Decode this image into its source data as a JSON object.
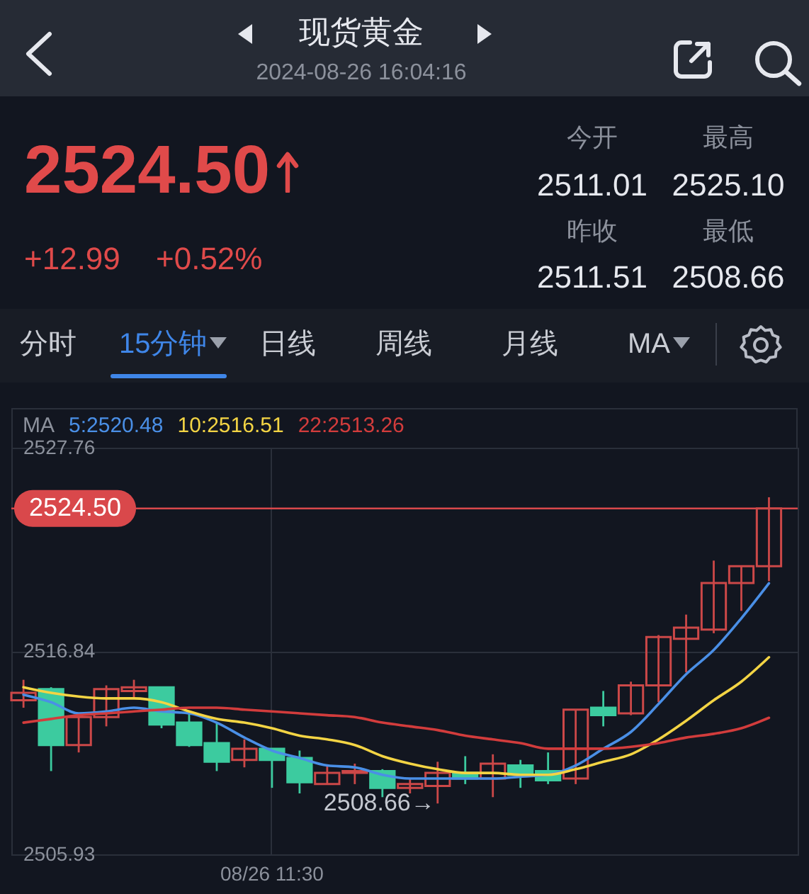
{
  "chart_data": [
    {
      "type": "other",
      "title": "现货黄金",
      "subtitle": "2024-08-26 16:04:16",
      "annotations": [
        "2524.50",
        "+12.99",
        "+0.52%",
        "今开",
        "最高",
        "2511.01",
        "2525.10",
        "昨收",
        "最低",
        "2511.51",
        "2508.66",
        "分时",
        "15分钟",
        "日线",
        "周线",
        "月线",
        "MA"
      ]
    },
    {
      "type": "candlestick",
      "categories": [
        null,
        null,
        null,
        null,
        null,
        null,
        null,
        null,
        null,
        "08/26 11:30",
        null,
        null,
        null,
        null,
        null,
        null,
        null,
        null,
        null,
        null,
        null,
        null,
        null,
        null,
        null,
        null,
        null,
        null
      ],
      "ohlc": [
        [
          2514.2,
          2515.3,
          2513.8,
          2514.6
        ],
        [
          2514.8,
          2514.9,
          2510.4,
          2511.8
        ],
        [
          2511.8,
          2513.4,
          2511.4,
          2513.3
        ],
        [
          2513.3,
          2515.0,
          2512.8,
          2514.8
        ],
        [
          2514.7,
          2515.3,
          2514.3,
          2514.9
        ],
        [
          2514.9,
          2514.9,
          2512.7,
          2512.9
        ],
        [
          2513.0,
          2513.5,
          2511.7,
          2511.8
        ],
        [
          2511.9,
          2513.0,
          2510.4,
          2510.9
        ],
        [
          2511.0,
          2512.1,
          2510.6,
          2511.6
        ],
        [
          2511.6,
          2511.6,
          2509.5,
          2511.0
        ],
        [
          2511.1,
          2511.5,
          2509.2,
          2509.8
        ],
        [
          2509.7,
          2510.7,
          2509.7,
          2510.3
        ],
        [
          2510.3,
          2510.8,
          2509.7,
          2510.4
        ],
        [
          2510.4,
          2510.5,
          2509.0,
          2509.5
        ],
        [
          2509.5,
          2510.0,
          2509.2,
          2509.7
        ],
        [
          2509.6,
          2510.9,
          2508.66,
          2510.3
        ],
        [
          2510.3,
          2511.2,
          2509.7,
          2510.0
        ],
        [
          2510.0,
          2511.3,
          2509.0,
          2510.8
        ],
        [
          2510.7,
          2511.0,
          2509.5,
          2510.2
        ],
        [
          2510.4,
          2511.4,
          2509.7,
          2509.9
        ],
        [
          2510.0,
          2513.7,
          2509.7,
          2513.7
        ],
        [
          2513.8,
          2514.7,
          2512.8,
          2513.4
        ],
        [
          2513.5,
          2515.2,
          2513.4,
          2515.0
        ],
        [
          2515.0,
          2517.7,
          2514.1,
          2517.6
        ],
        [
          2517.5,
          2518.8,
          2515.7,
          2518.1
        ],
        [
          2518.0,
          2521.7,
          2517.8,
          2520.5
        ],
        [
          2520.5,
          2521.4,
          2519.0,
          2521.4
        ],
        [
          2521.4,
          2525.1,
          2520.6,
          2524.5
        ]
      ],
      "colors": [
        "#cc4848",
        "#3ccb9f",
        "#cc4848",
        "#cc4848",
        "#cc4848",
        "#3ccb9f",
        "#3ccb9f",
        "#3ccb9f",
        "#cc4848",
        "#3ccb9f",
        "#3ccb9f",
        "#cc4848",
        "#cc4848",
        "#3ccb9f",
        "#cc4848",
        "#cc4848",
        "#3ccb9f",
        "#cc4848",
        "#3ccb9f",
        "#3ccb9f",
        "#cc4848",
        "#3ccb9f",
        "#cc4848",
        "#cc4848",
        "#cc4848",
        "#cc4848",
        "#cc4848",
        "#cc4848"
      ],
      "ylim": [
        2505.93,
        2527.76
      ],
      "yticks": [
        2527.76,
        2516.84,
        2505.93
      ],
      "grid": true,
      "legend": "top left",
      "legend_title": "MA",
      "series": [
        {
          "type": "line",
          "name": "5:2520.48",
          "color": "#4a8fe6",
          "values": [
            2514.5,
            2514.1,
            2513.5,
            2513.6,
            2513.8,
            2513.6,
            2513.5,
            2513.0,
            2512.2,
            2511.5,
            2511.1,
            2510.7,
            2510.6,
            2510.2,
            2510.0,
            2510.0,
            2510.0,
            2510.0,
            2510.1,
            2510.2,
            2510.7,
            2511.6,
            2512.5,
            2514.0,
            2515.6,
            2516.9,
            2518.6,
            2520.48
          ]
        },
        {
          "type": "line",
          "name": "10:2516.51",
          "color": "#f3d444",
          "values": [
            2514.9,
            2514.6,
            2514.4,
            2514.3,
            2514.3,
            2514.1,
            2513.6,
            2513.2,
            2513.0,
            2512.7,
            2512.3,
            2512.1,
            2511.8,
            2511.2,
            2510.8,
            2510.5,
            2510.3,
            2510.3,
            2510.2,
            2510.2,
            2510.5,
            2510.9,
            2511.3,
            2512.1,
            2513.1,
            2514.2,
            2515.2,
            2516.51
          ]
        },
        {
          "type": "line",
          "name": "22:2513.26",
          "color": "#d23c3c",
          "values": [
            2513.0,
            2513.2,
            2513.4,
            2513.5,
            2513.6,
            2513.7,
            2513.8,
            2513.8,
            2513.7,
            2513.6,
            2513.5,
            2513.4,
            2513.3,
            2513.0,
            2512.8,
            2512.6,
            2512.3,
            2512.1,
            2511.9,
            2511.6,
            2511.6,
            2511.6,
            2511.7,
            2511.9,
            2512.2,
            2512.4,
            2512.7,
            2513.26
          ]
        }
      ],
      "ref_lines": [
        {
          "axis": "y",
          "value": 2524.5,
          "label": "2524.50",
          "color": "#d9484b"
        }
      ],
      "annotations": [
        "2508.66→"
      ]
    }
  ]
}
